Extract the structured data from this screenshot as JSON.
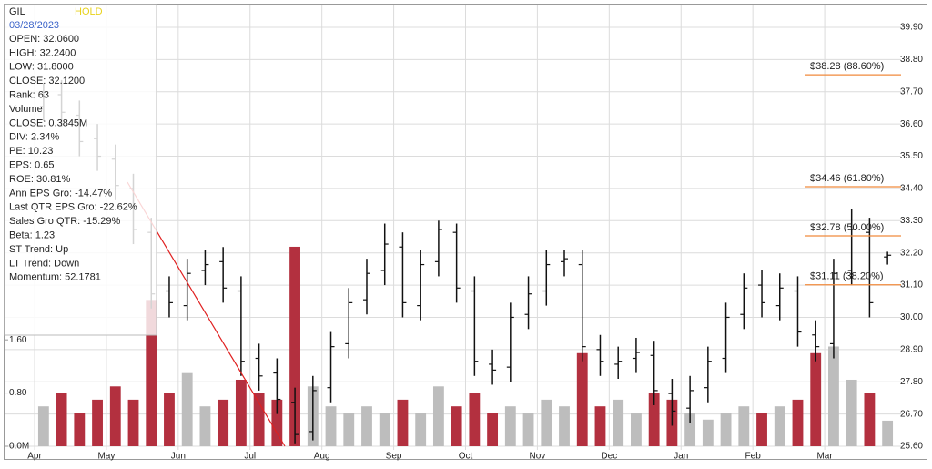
{
  "info": {
    "symbol": "GIL",
    "rating": "HOLD",
    "date": "03/28/2023",
    "lines": [
      "OPEN: 32.0600",
      "HIGH: 32.2400",
      "LOW: 31.8000",
      "CLOSE: 32.1200",
      "Rank: 63",
      "Volume",
      "CLOSE: 0.3845M",
      "DIV: 2.34%",
      "PE: 10.23",
      "EPS: 0.65",
      "ROE: 30.81%",
      "Ann EPS Gro: -14.47%",
      "Last QTR EPS Gro: -22.62%",
      "Sales Gro QTR: -15.29%",
      "Beta: 1.23",
      "ST Trend: Up",
      "LT Trend: Down",
      "Momentum: 52.1781"
    ]
  },
  "chart_data": {
    "type": "ohlc",
    "categories": [
      "Apr",
      null,
      null,
      null,
      "May",
      null,
      null,
      null,
      "Jun",
      null,
      null,
      null,
      "Jul",
      null,
      null,
      null,
      "Aug",
      null,
      null,
      null,
      "Sep",
      null,
      null,
      null,
      "Oct",
      null,
      null,
      null,
      "Nov",
      null,
      null,
      null,
      "Dec",
      null,
      null,
      null,
      "Jan",
      null,
      null,
      null,
      "Feb",
      null,
      null,
      null,
      "Mar",
      null,
      null,
      null
    ],
    "open": [
      37.2,
      37.6,
      36.9,
      36.1,
      35.4,
      34.4,
      32.9,
      30.9,
      30.4,
      31.6,
      31.9,
      30.9,
      28.6,
      28.1,
      27.1,
      26.1,
      27.6,
      29.1,
      30.6,
      31.6,
      32.4,
      30.4,
      31.9,
      32.9,
      30.9,
      28.4,
      28.3,
      30.1,
      30.9,
      31.9,
      31.8,
      28.9,
      28.4,
      28.6,
      28.7,
      27.4,
      26.9,
      27.6,
      28.6,
      30.1,
      31.1,
      30.4,
      30.9,
      29.4,
      29.1,
      31.6,
      32.9,
      32.06
    ],
    "high": [
      38.0,
      38.1,
      37.4,
      36.6,
      35.9,
      34.9,
      33.4,
      31.4,
      32.0,
      32.3,
      32.4,
      31.4,
      29.1,
      28.6,
      27.6,
      28.0,
      29.5,
      31.0,
      32.0,
      33.2,
      32.9,
      32.3,
      33.3,
      33.2,
      31.4,
      28.9,
      30.5,
      31.4,
      32.3,
      32.3,
      32.3,
      29.4,
      29.0,
      29.3,
      29.2,
      27.9,
      28.0,
      29.0,
      30.5,
      31.5,
      31.6,
      31.5,
      31.4,
      29.9,
      32.0,
      33.7,
      33.4,
      32.24
    ],
    "low": [
      36.7,
      36.5,
      35.5,
      35.0,
      34.0,
      32.5,
      30.3,
      30.0,
      29.9,
      31.1,
      30.5,
      28.0,
      27.5,
      26.7,
      25.7,
      25.8,
      27.1,
      28.6,
      30.1,
      31.1,
      30.0,
      29.9,
      31.4,
      30.5,
      28.0,
      27.7,
      27.8,
      29.6,
      30.4,
      31.4,
      28.5,
      28.0,
      27.9,
      28.1,
      27.0,
      26.3,
      26.4,
      27.1,
      28.1,
      29.6,
      30.0,
      29.9,
      29.0,
      28.5,
      28.6,
      31.1,
      30.0,
      31.8
    ],
    "close": [
      37.5,
      37.0,
      36.0,
      35.5,
      34.5,
      33.0,
      30.8,
      30.5,
      31.5,
      31.8,
      31.0,
      28.5,
      28.0,
      27.2,
      26.0,
      27.5,
      29.0,
      30.5,
      31.5,
      32.5,
      30.5,
      31.8,
      33.0,
      31.0,
      28.5,
      28.2,
      30.0,
      30.8,
      31.8,
      32.0,
      29.0,
      28.5,
      28.5,
      28.8,
      27.5,
      26.8,
      27.5,
      28.5,
      30.0,
      31.0,
      30.5,
      31.0,
      29.5,
      29.0,
      31.5,
      33.0,
      30.5,
      32.12
    ],
    "volume": [
      0.6,
      0.8,
      0.5,
      0.7,
      0.9,
      0.7,
      2.2,
      0.8,
      1.1,
      0.6,
      0.7,
      1.0,
      0.8,
      0.7,
      3.0,
      0.9,
      0.6,
      0.5,
      0.6,
      0.5,
      0.7,
      0.5,
      0.9,
      0.6,
      0.8,
      0.5,
      0.6,
      0.5,
      0.7,
      0.6,
      1.4,
      0.6,
      0.7,
      0.5,
      0.8,
      0.7,
      0.5,
      0.4,
      0.5,
      0.6,
      0.5,
      0.6,
      0.7,
      1.4,
      1.5,
      1.0,
      0.8,
      0.3845
    ],
    "ylim": [
      25.6,
      39.9
    ],
    "yticks": [
      {
        "value": 39.9,
        "label": "39.90"
      },
      {
        "value": 38.8,
        "label": "38.80"
      },
      {
        "value": 37.7,
        "label": "37.70"
      },
      {
        "value": 36.6,
        "label": "36.60"
      },
      {
        "value": 35.5,
        "label": "35.50"
      },
      {
        "value": 34.4,
        "label": "34.40"
      },
      {
        "value": 33.3,
        "label": "33.30"
      },
      {
        "value": 32.2,
        "label": "32.20"
      },
      {
        "value": 31.1,
        "label": "31.10"
      },
      {
        "value": 30.0,
        "label": "30.00"
      },
      {
        "value": 28.9,
        "label": "28.90"
      },
      {
        "value": 27.8,
        "label": "27.80"
      },
      {
        "value": 26.7,
        "label": "26.70"
      },
      {
        "value": 25.6,
        "label": "25.60"
      }
    ],
    "y2lim": [
      0,
      6.3
    ],
    "y2ticks": [
      {
        "value": 0,
        "label": "0.0M"
      },
      {
        "value": 0.8,
        "label": "0.80"
      },
      {
        "value": 1.6,
        "label": "1.60"
      }
    ],
    "fib_levels": [
      {
        "value": 38.28,
        "label": "$38.28 (88.60%)"
      },
      {
        "value": 34.46,
        "label": "$34.46 (61.80%)"
      },
      {
        "value": 32.78,
        "label": "$32.78 (50.00%)"
      },
      {
        "value": 31.11,
        "label": "$31.11 (38.20%)"
      }
    ],
    "bar_color": "#111111",
    "down_volume_color": "#b3303f",
    "up_volume_color": "#bdbdbd",
    "fib_color": "#f08a3c",
    "grid": true
  }
}
